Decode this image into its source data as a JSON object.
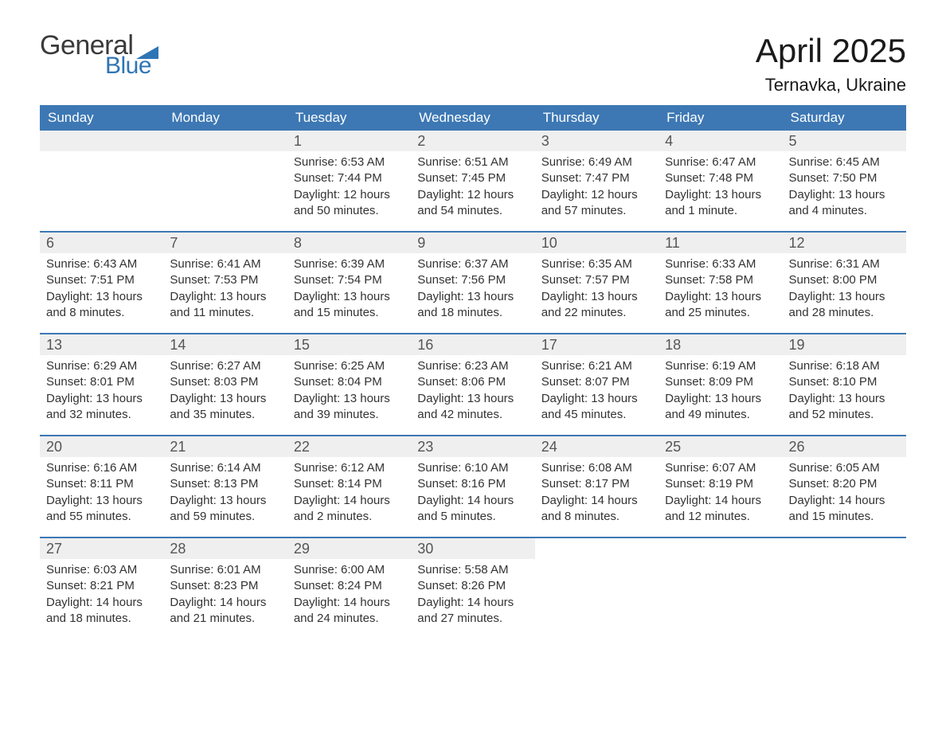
{
  "logo": {
    "text_top": "General",
    "text_bottom": "Blue",
    "top_color": "#3a3a3a",
    "bottom_color": "#2f75b5",
    "flag_color": "#2f75b5"
  },
  "title": "April 2025",
  "location": "Ternavka, Ukraine",
  "header_bg": "#3d78b4",
  "header_fg": "#ffffff",
  "daynum_bg": "#efefef",
  "daynum_fg": "#555555",
  "week_border": "#3d78b4",
  "body_color": "#333333",
  "weekdays": [
    "Sunday",
    "Monday",
    "Tuesday",
    "Wednesday",
    "Thursday",
    "Friday",
    "Saturday"
  ],
  "weeks": [
    [
      {
        "n": "",
        "sunrise": "",
        "sunset": "",
        "day1": "",
        "day2": ""
      },
      {
        "n": "",
        "sunrise": "",
        "sunset": "",
        "day1": "",
        "day2": ""
      },
      {
        "n": "1",
        "sunrise": "Sunrise: 6:53 AM",
        "sunset": "Sunset: 7:44 PM",
        "day1": "Daylight: 12 hours",
        "day2": "and 50 minutes."
      },
      {
        "n": "2",
        "sunrise": "Sunrise: 6:51 AM",
        "sunset": "Sunset: 7:45 PM",
        "day1": "Daylight: 12 hours",
        "day2": "and 54 minutes."
      },
      {
        "n": "3",
        "sunrise": "Sunrise: 6:49 AM",
        "sunset": "Sunset: 7:47 PM",
        "day1": "Daylight: 12 hours",
        "day2": "and 57 minutes."
      },
      {
        "n": "4",
        "sunrise": "Sunrise: 6:47 AM",
        "sunset": "Sunset: 7:48 PM",
        "day1": "Daylight: 13 hours",
        "day2": "and 1 minute."
      },
      {
        "n": "5",
        "sunrise": "Sunrise: 6:45 AM",
        "sunset": "Sunset: 7:50 PM",
        "day1": "Daylight: 13 hours",
        "day2": "and 4 minutes."
      }
    ],
    [
      {
        "n": "6",
        "sunrise": "Sunrise: 6:43 AM",
        "sunset": "Sunset: 7:51 PM",
        "day1": "Daylight: 13 hours",
        "day2": "and 8 minutes."
      },
      {
        "n": "7",
        "sunrise": "Sunrise: 6:41 AM",
        "sunset": "Sunset: 7:53 PM",
        "day1": "Daylight: 13 hours",
        "day2": "and 11 minutes."
      },
      {
        "n": "8",
        "sunrise": "Sunrise: 6:39 AM",
        "sunset": "Sunset: 7:54 PM",
        "day1": "Daylight: 13 hours",
        "day2": "and 15 minutes."
      },
      {
        "n": "9",
        "sunrise": "Sunrise: 6:37 AM",
        "sunset": "Sunset: 7:56 PM",
        "day1": "Daylight: 13 hours",
        "day2": "and 18 minutes."
      },
      {
        "n": "10",
        "sunrise": "Sunrise: 6:35 AM",
        "sunset": "Sunset: 7:57 PM",
        "day1": "Daylight: 13 hours",
        "day2": "and 22 minutes."
      },
      {
        "n": "11",
        "sunrise": "Sunrise: 6:33 AM",
        "sunset": "Sunset: 7:58 PM",
        "day1": "Daylight: 13 hours",
        "day2": "and 25 minutes."
      },
      {
        "n": "12",
        "sunrise": "Sunrise: 6:31 AM",
        "sunset": "Sunset: 8:00 PM",
        "day1": "Daylight: 13 hours",
        "day2": "and 28 minutes."
      }
    ],
    [
      {
        "n": "13",
        "sunrise": "Sunrise: 6:29 AM",
        "sunset": "Sunset: 8:01 PM",
        "day1": "Daylight: 13 hours",
        "day2": "and 32 minutes."
      },
      {
        "n": "14",
        "sunrise": "Sunrise: 6:27 AM",
        "sunset": "Sunset: 8:03 PM",
        "day1": "Daylight: 13 hours",
        "day2": "and 35 minutes."
      },
      {
        "n": "15",
        "sunrise": "Sunrise: 6:25 AM",
        "sunset": "Sunset: 8:04 PM",
        "day1": "Daylight: 13 hours",
        "day2": "and 39 minutes."
      },
      {
        "n": "16",
        "sunrise": "Sunrise: 6:23 AM",
        "sunset": "Sunset: 8:06 PM",
        "day1": "Daylight: 13 hours",
        "day2": "and 42 minutes."
      },
      {
        "n": "17",
        "sunrise": "Sunrise: 6:21 AM",
        "sunset": "Sunset: 8:07 PM",
        "day1": "Daylight: 13 hours",
        "day2": "and 45 minutes."
      },
      {
        "n": "18",
        "sunrise": "Sunrise: 6:19 AM",
        "sunset": "Sunset: 8:09 PM",
        "day1": "Daylight: 13 hours",
        "day2": "and 49 minutes."
      },
      {
        "n": "19",
        "sunrise": "Sunrise: 6:18 AM",
        "sunset": "Sunset: 8:10 PM",
        "day1": "Daylight: 13 hours",
        "day2": "and 52 minutes."
      }
    ],
    [
      {
        "n": "20",
        "sunrise": "Sunrise: 6:16 AM",
        "sunset": "Sunset: 8:11 PM",
        "day1": "Daylight: 13 hours",
        "day2": "and 55 minutes."
      },
      {
        "n": "21",
        "sunrise": "Sunrise: 6:14 AM",
        "sunset": "Sunset: 8:13 PM",
        "day1": "Daylight: 13 hours",
        "day2": "and 59 minutes."
      },
      {
        "n": "22",
        "sunrise": "Sunrise: 6:12 AM",
        "sunset": "Sunset: 8:14 PM",
        "day1": "Daylight: 14 hours",
        "day2": "and 2 minutes."
      },
      {
        "n": "23",
        "sunrise": "Sunrise: 6:10 AM",
        "sunset": "Sunset: 8:16 PM",
        "day1": "Daylight: 14 hours",
        "day2": "and 5 minutes."
      },
      {
        "n": "24",
        "sunrise": "Sunrise: 6:08 AM",
        "sunset": "Sunset: 8:17 PM",
        "day1": "Daylight: 14 hours",
        "day2": "and 8 minutes."
      },
      {
        "n": "25",
        "sunrise": "Sunrise: 6:07 AM",
        "sunset": "Sunset: 8:19 PM",
        "day1": "Daylight: 14 hours",
        "day2": "and 12 minutes."
      },
      {
        "n": "26",
        "sunrise": "Sunrise: 6:05 AM",
        "sunset": "Sunset: 8:20 PM",
        "day1": "Daylight: 14 hours",
        "day2": "and 15 minutes."
      }
    ],
    [
      {
        "n": "27",
        "sunrise": "Sunrise: 6:03 AM",
        "sunset": "Sunset: 8:21 PM",
        "day1": "Daylight: 14 hours",
        "day2": "and 18 minutes."
      },
      {
        "n": "28",
        "sunrise": "Sunrise: 6:01 AM",
        "sunset": "Sunset: 8:23 PM",
        "day1": "Daylight: 14 hours",
        "day2": "and 21 minutes."
      },
      {
        "n": "29",
        "sunrise": "Sunrise: 6:00 AM",
        "sunset": "Sunset: 8:24 PM",
        "day1": "Daylight: 14 hours",
        "day2": "and 24 minutes."
      },
      {
        "n": "30",
        "sunrise": "Sunrise: 5:58 AM",
        "sunset": "Sunset: 8:26 PM",
        "day1": "Daylight: 14 hours",
        "day2": "and 27 minutes."
      },
      {
        "n": "",
        "sunrise": "",
        "sunset": "",
        "day1": "",
        "day2": ""
      },
      {
        "n": "",
        "sunrise": "",
        "sunset": "",
        "day1": "",
        "day2": ""
      },
      {
        "n": "",
        "sunrise": "",
        "sunset": "",
        "day1": "",
        "day2": ""
      }
    ]
  ]
}
